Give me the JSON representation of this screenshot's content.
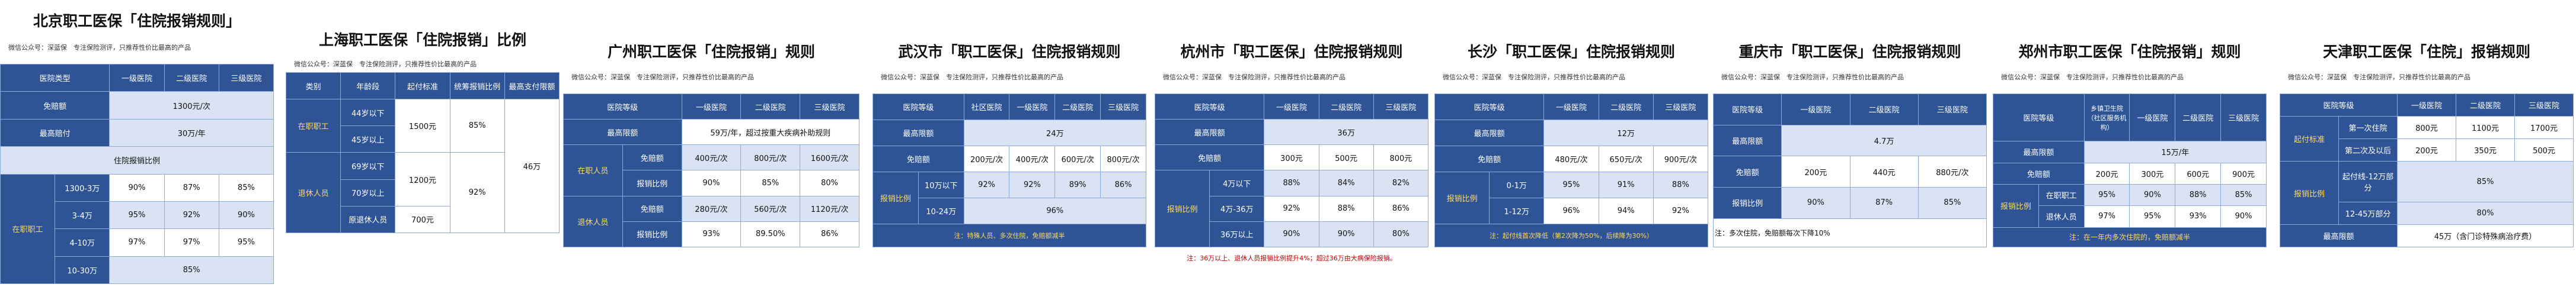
{
  "panels": [
    {
      "title": "北京职工医保「住院报销规则」",
      "subtitle": "微信公众号：深蓝保　专注保险测评，只推荐性价比最高的产品",
      "rows": [
        [
          "医院类型",
          "一级医院",
          "二级医院",
          "三级医院"
        ],
        [
          "免赔额",
          "1300元/次"
        ],
        [
          "最高赔付",
          "30万/年"
        ],
        [
          "住院报销比例"
        ],
        [
          "在职职工",
          "1300-3万",
          "90%",
          "87%",
          "85%"
        ],
        [
          "3-4万",
          "95%",
          "92%",
          "90%"
        ],
        [
          "4-10万",
          "97%",
          "97%",
          "95%"
        ],
        [
          "10-30万",
          "85%"
        ]
      ]
    },
    {
      "title": "上海职工医保「住院报销」比例",
      "subtitle": "微信公众号：深蓝保　专注保险测评，只推荐性价比最高的产品",
      "rows": [
        [
          "类别",
          "年龄段",
          "起付标准",
          "统筹报销比例",
          "最高支付限额"
        ],
        [
          "在职职工",
          "44岁以下",
          "1500元",
          "85%",
          "46万"
        ],
        [
          "45岁以上"
        ],
        [
          "退休人员",
          "69岁以下",
          "1200元",
          "92%"
        ],
        [
          "70岁以上"
        ],
        [
          "原退休人员",
          "700元"
        ]
      ]
    },
    {
      "title": "广州职工医保「住院报销」规则",
      "subtitle": "微信公众号：深蓝保　专注保险测评，只推荐性价比最高的产品",
      "rows": [
        [
          "医院等级",
          "一级医院",
          "二级医院",
          "三级医院"
        ],
        [
          "最高限额",
          "59万/年，超过按重大疾病补助规则"
        ],
        [
          "在职人员",
          "免赔额",
          "400元/次",
          "800元/次",
          "1600元/次"
        ],
        [
          "报销比例",
          "90%",
          "85%",
          "80%"
        ],
        [
          "退休人员",
          "免赔额",
          "280元/次",
          "560元/次",
          "1120元/次"
        ],
        [
          "报销比例",
          "93%",
          "89.50%",
          "86%"
        ]
      ]
    },
    {
      "title": "武汉市「职工医保」住院报销规则",
      "subtitle": "微信公众号：深蓝保　专注保险测评，只推荐性价比最高的产品",
      "rows": [
        [
          "医院等级",
          "社区医院",
          "一级医院",
          "二级医院",
          "三级医院"
        ],
        [
          "最高限额",
          "24万"
        ],
        [
          "免赔额",
          "200元/次",
          "400元/次",
          "600元/次",
          "800元/次"
        ],
        [
          "报销比例",
          "10万以下",
          "92%",
          "92%",
          "89%",
          "86%"
        ],
        [
          "10-24万",
          "96%"
        ]
      ],
      "note": "注：特殊人员、多次住院，免赔额减半"
    },
    {
      "title": "杭州市「职工医保」住院报销规则",
      "subtitle": "微信公众号：深蓝保　专注保险测评，只推荐性价比最高的产品",
      "rows": [
        [
          "医院等级",
          "一级医院",
          "二级医院",
          "三级医院"
        ],
        [
          "最高限额",
          "36万"
        ],
        [
          "免赔额",
          "300元",
          "500元",
          "800元"
        ],
        [
          "报销比例",
          "4万以下",
          "88%",
          "84%",
          "82%"
        ],
        [
          "4万-36万",
          "92%",
          "88%",
          "86%"
        ],
        [
          "36万以上",
          "90%",
          "90%",
          "80%"
        ]
      ],
      "note": "注：36万以上、退休人员报销比例提升4%；超过36万由大病保险报销。"
    },
    {
      "title": "长沙「职工医保」住院报销规则",
      "subtitle": "微信公众号：深蓝保　专注保险测评，只推荐性价比最高的产品",
      "rows": [
        [
          "医院等级",
          "一级医院",
          "二级医院",
          "三级医院"
        ],
        [
          "最高限额",
          "12万"
        ],
        [
          "免赔额",
          "480元/次",
          "650元/次",
          "900元/次"
        ],
        [
          "报销比例",
          "0-1万",
          "95%",
          "91%",
          "88%"
        ],
        [
          "1-12万",
          "96%",
          "94%",
          "92%"
        ]
      ],
      "note": "注：起付线首次降低（第2次降为50%，后续降为30%）"
    },
    {
      "title": "重庆市「职工医保」住院报销规则",
      "subtitle": "微信公众号：深蓝保　专注保险测评，只推荐性价比最高的产品",
      "rows": [
        [
          "医院等级",
          "一级医院",
          "二级医院",
          "三级医院"
        ],
        [
          "最高限额",
          "4.7万"
        ],
        [
          "免赔额",
          "200元",
          "440元",
          "880元/次"
        ],
        [
          "报销比例",
          "90%",
          "87%",
          "85%"
        ]
      ],
      "note": "注：多次住院，免赔额每次下降10%"
    },
    {
      "title": "郑州市职工医保「住院报销」规则",
      "subtitle": "微信公众号：深蓝保　专注保险测评，只推荐性价比最高的产品",
      "rows": [
        [
          "医院等级",
          "乡镇卫生院（社区服务机构）",
          "一级医院",
          "二级医院",
          "三级医院"
        ],
        [
          "最高限额",
          "15万/年"
        ],
        [
          "免赔额",
          "200元",
          "300元",
          "600元",
          "900元"
        ],
        [
          "报销比例",
          "在职职工",
          "95%",
          "90%",
          "88%",
          "85%"
        ],
        [
          "退休人员",
          "97%",
          "95%",
          "93%",
          "90%"
        ]
      ],
      "note": "注：在一年内多次住院的，免赔额减半"
    },
    {
      "title": "天津职工医保「住院」报销规则",
      "subtitle": "微信公众号：深蓝保　专注保险测评，只推荐性价比最高的产品",
      "rows": [
        [
          "医院等级",
          "一级医院",
          "二级医院",
          "三级医院"
        ],
        [
          "起付标准",
          "第一次住院",
          "800元",
          "1100元",
          "1700元"
        ],
        [
          "第二次及以后",
          "200元",
          "350元",
          "500元"
        ],
        [
          "报销比例",
          "起付线-12万部分",
          "85%"
        ],
        [
          "12-45万部分",
          "80%"
        ],
        [
          "最高限额",
          "45万（含门诊特殊病治疗费）"
        ]
      ]
    }
  ]
}
